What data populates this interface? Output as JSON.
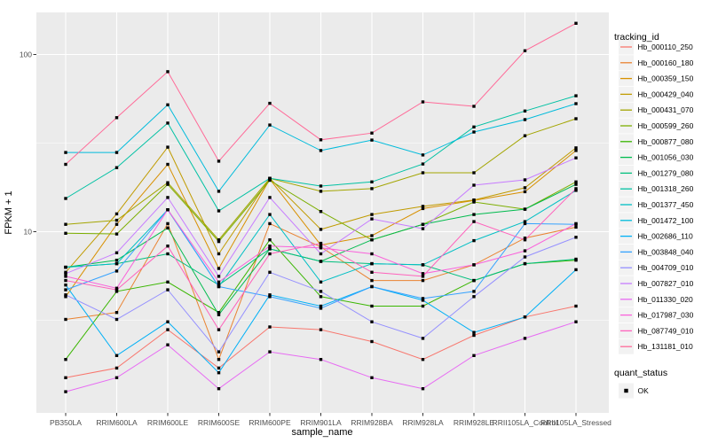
{
  "figure": {
    "bg": "#FFFFFF",
    "panel_bg": "#EBEBEB",
    "grid_color": "#FFFFFF",
    "tick_color": "#333333",
    "tick_label_color": "#4D4D4D",
    "text_color": "#000000",
    "legend_key_bg": "#F2F2F2"
  },
  "axes": {
    "x_title": "sample_name",
    "y_title": "FPKM + 1",
    "y_tick_labels": [
      "100",
      "10"
    ],
    "y_tick_values": [
      100,
      10
    ],
    "y_minor_values": [
      31.623,
      3.1623
    ]
  },
  "chart_data": {
    "type": "line",
    "title": "",
    "xlabel": "sample_name",
    "ylabel": "FPKM + 1",
    "y_scale": "log10",
    "ylim": [
      1,
      173
    ],
    "grid": true,
    "legend_position": "right",
    "point_marker": {
      "shape": "filled-square",
      "color": "#000000",
      "size": 3.4
    },
    "categories": [
      "PB350LA",
      "RRIM600LA",
      "RRIM600LE",
      "RRIM600SE",
      "RRIM600PE",
      "RRIM901LA",
      "RRIM928BA",
      "RRIM928LA",
      "RRIM928LE",
      "RRII105LA_Control",
      "RRII105LA_Stressed"
    ],
    "series": [
      {
        "name": "Hb_000110_250",
        "color": "#F8766D",
        "values": [
          1.5,
          1.7,
          2.8,
          1.7,
          2.9,
          2.8,
          2.4,
          1.9,
          2.6,
          3.3,
          3.8
        ]
      },
      {
        "name": "Hb_000160_180",
        "color": "#EA8331",
        "values": [
          3.2,
          3.5,
          11.1,
          1.9,
          11.1,
          8.2,
          5.3,
          5.3,
          6.5,
          9.2,
          10.6
        ]
      },
      {
        "name": "Hb_000359_150",
        "color": "#D89000",
        "values": [
          4.3,
          11.0,
          24.0,
          6.2,
          19.8,
          8.4,
          9.5,
          13.5,
          15.0,
          16.8,
          28.7
        ]
      },
      {
        "name": "Hb_000429_040",
        "color": "#C09B00",
        "values": [
          5.9,
          12.6,
          30.0,
          7.5,
          20.0,
          10.3,
          12.5,
          13.9,
          15.1,
          17.7,
          29.7
        ]
      },
      {
        "name": "Hb_000431_070",
        "color": "#A3A500",
        "values": [
          11.0,
          11.6,
          18.9,
          9.0,
          20.0,
          16.9,
          17.5,
          21.5,
          21.5,
          34.8,
          43.4
        ]
      },
      {
        "name": "Hb_000599_260",
        "color": "#7CAE00",
        "values": [
          9.8,
          9.7,
          18.5,
          8.8,
          19.5,
          13.0,
          9.0,
          11.0,
          14.7,
          13.4,
          19.1
        ]
      },
      {
        "name": "Hb_000877_080",
        "color": "#39B600",
        "values": [
          1.9,
          4.6,
          5.2,
          3.5,
          9.0,
          4.3,
          3.8,
          3.8,
          5.3,
          6.6,
          6.9
        ]
      },
      {
        "name": "Hb_001056_030",
        "color": "#00BB4E",
        "values": [
          6.3,
          6.9,
          10.5,
          3.4,
          8.0,
          6.8,
          9.0,
          11.0,
          12.5,
          13.4,
          18.5
        ]
      },
      {
        "name": "Hb_001279_080",
        "color": "#00BF7D",
        "values": [
          6.3,
          6.6,
          7.5,
          5.0,
          8.0,
          6.8,
          6.6,
          6.5,
          5.3,
          6.6,
          7.0
        ]
      },
      {
        "name": "Hb_001318_260",
        "color": "#00C1A3",
        "values": [
          15.4,
          23.0,
          41.0,
          13.1,
          20.0,
          18.1,
          19.1,
          24.1,
          39.0,
          48.0,
          58.5
        ]
      },
      {
        "name": "Hb_001377_450",
        "color": "#00BFC4",
        "values": [
          6.3,
          6.6,
          13.3,
          4.9,
          12.5,
          5.2,
          6.6,
          6.5,
          8.9,
          11.4,
          17.1
        ]
      },
      {
        "name": "Hb_001472_100",
        "color": "#00BBDB",
        "values": [
          28.0,
          28.0,
          52.0,
          16.9,
          40.0,
          28.7,
          32.9,
          27.1,
          36.5,
          42.9,
          52.8
        ]
      },
      {
        "name": "Hb_002686_110",
        "color": "#00B0F6",
        "values": [
          5.0,
          2.0,
          3.1,
          1.6,
          4.4,
          3.8,
          4.9,
          4.1,
          2.7,
          3.3,
          6.1
        ]
      },
      {
        "name": "Hb_003848_040",
        "color": "#35A2FF",
        "values": [
          4.7,
          6.0,
          13.3,
          4.9,
          4.3,
          3.7,
          4.9,
          4.2,
          4.6,
          11.1,
          11.0
        ]
      },
      {
        "name": "Hb_004709_010",
        "color": "#9590FF",
        "values": [
          4.4,
          3.2,
          4.7,
          2.1,
          5.9,
          4.6,
          3.1,
          2.5,
          4.3,
          7.2,
          9.3
        ]
      },
      {
        "name": "Hb_007827_010",
        "color": "#C77CFF",
        "values": [
          5.8,
          7.6,
          15.6,
          5.6,
          15.6,
          7.5,
          11.8,
          10.4,
          18.3,
          19.6,
          26.1
        ]
      },
      {
        "name": "Hb_011330_020",
        "color": "#E76BF3",
        "values": [
          1.25,
          1.5,
          2.3,
          1.3,
          2.1,
          1.9,
          1.5,
          1.3,
          2.0,
          2.5,
          3.1
        ]
      },
      {
        "name": "Hb_017987_030",
        "color": "#FA62DB",
        "values": [
          5.6,
          4.8,
          13.3,
          5.2,
          8.3,
          8.1,
          7.5,
          5.8,
          6.5,
          7.8,
          11.1
        ]
      },
      {
        "name": "Hb_087749_010",
        "color": "#FF62BC",
        "values": [
          5.3,
          4.7,
          8.3,
          2.8,
          7.5,
          8.6,
          5.9,
          5.6,
          11.4,
          9.0,
          17.5
        ]
      },
      {
        "name": "Hb_131181_010",
        "color": "#FF6A98",
        "values": [
          24.0,
          44.0,
          80.0,
          25.0,
          53.0,
          33.0,
          36.0,
          54.0,
          51.0,
          105.0,
          150.0
        ]
      }
    ]
  },
  "legend": {
    "tracking_title": "tracking_id",
    "quant_title": "quant_status",
    "quant_items": [
      {
        "label": "OK",
        "key_shape": "filled-square",
        "key_color": "#000000"
      }
    ]
  }
}
